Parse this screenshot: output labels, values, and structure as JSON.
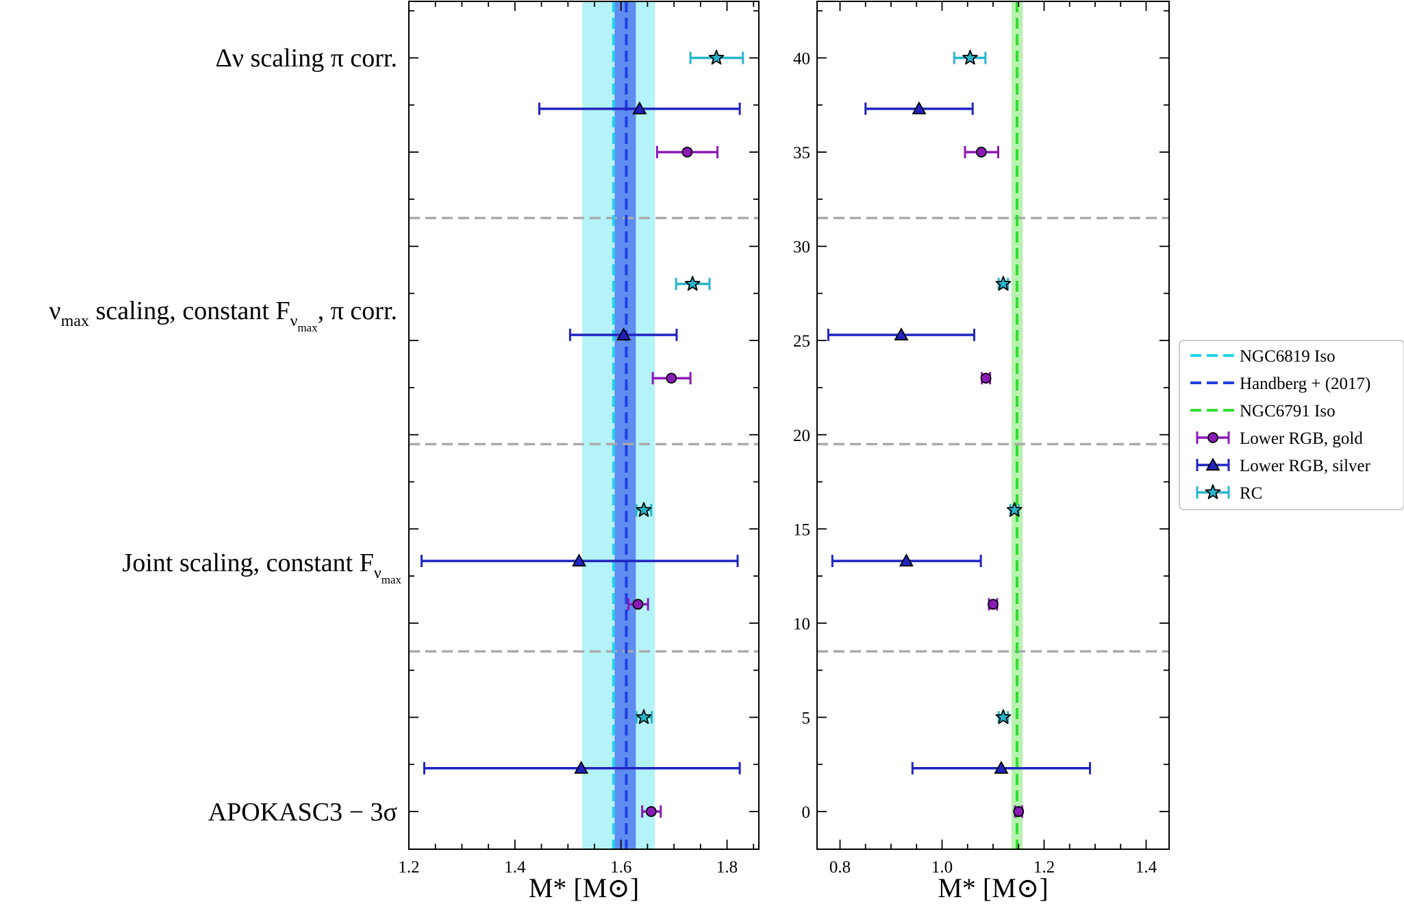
{
  "row_labels": [
    "Δν scaling π corr.",
    "νmax scaling, constant Fνmax, π corr.",
    "Joint scaling, constant Fνmax",
    "APOKASC3 − 3σ"
  ],
  "colors": {
    "ngc6819_iso": "#22d3ee",
    "ngc6819_band": "#b4f3f8",
    "handberg": "#1d3fe0",
    "handberg_band": "#5f8cf0",
    "ngc6791_iso": "#33dd33",
    "ngc6791_band": "#b8f2b0",
    "gold": "#8b1ab8",
    "silver": "#1f24c0",
    "rc": "#27b6cc",
    "separator": "#aaaaaa"
  },
  "chart_data": [
    {
      "type": "scatter",
      "panel": "left",
      "xlabel": "M* [M⊙]",
      "xlim": [
        1.2,
        1.86
      ],
      "ylim": [
        -2,
        43
      ],
      "xticks": [
        "1.2",
        "1.4",
        "1.6",
        "1.8"
      ],
      "xtick_values": [
        1.2,
        1.4,
        1.6,
        1.8
      ],
      "separators_y": [
        31.5,
        19.5,
        8.5
      ],
      "vertical_lines": [
        {
          "name": "NGC6819 Iso",
          "x": 1.586,
          "color_key": "ngc6819_iso",
          "band": [
            1.527,
            1.664
          ],
          "band_color_key": "ngc6819_band"
        },
        {
          "name": "Handberg + (2017)",
          "x": 1.61,
          "color_key": "handberg",
          "band": [
            1.588,
            1.628
          ],
          "band_color_key": "handberg_band"
        }
      ],
      "series": [
        {
          "name": "Lower RGB, gold",
          "marker": "circle",
          "color_key": "gold",
          "points": [
            {
              "y": 35,
              "x": 1.725,
              "lo": 1.668,
              "hi": 1.782
            },
            {
              "y": 23,
              "x": 1.695,
              "lo": 1.66,
              "hi": 1.731
            },
            {
              "y": 11,
              "x": 1.632,
              "lo": 1.614,
              "hi": 1.651
            },
            {
              "y": 0,
              "x": 1.657,
              "lo": 1.64,
              "hi": 1.675
            }
          ]
        },
        {
          "name": "Lower RGB, silver",
          "marker": "triangle",
          "color_key": "silver",
          "points": [
            {
              "y": 37.3,
              "x": 1.635,
              "lo": 1.446,
              "hi": 1.824
            },
            {
              "y": 25.3,
              "x": 1.605,
              "lo": 1.504,
              "hi": 1.705
            },
            {
              "y": 13.3,
              "x": 1.521,
              "lo": 1.224,
              "hi": 1.82
            },
            {
              "y": 2.3,
              "x": 1.525,
              "lo": 1.229,
              "hi": 1.824
            }
          ]
        },
        {
          "name": "RC",
          "marker": "star",
          "color_key": "rc",
          "points": [
            {
              "y": 40,
              "x": 1.78,
              "lo": 1.731,
              "hi": 1.83
            },
            {
              "y": 28,
              "x": 1.735,
              "lo": 1.704,
              "hi": 1.767
            },
            {
              "y": 16,
              "x": 1.643,
              "lo": 1.629,
              "hi": 1.657
            },
            {
              "y": 5,
              "x": 1.643,
              "lo": 1.629,
              "hi": 1.658
            }
          ]
        }
      ]
    },
    {
      "type": "scatter",
      "panel": "right",
      "xlabel": "M* [M⊙]",
      "xlim": [
        0.755,
        1.445
      ],
      "ylim": [
        -2,
        43
      ],
      "xticks": [
        "0.8",
        "1.0",
        "1.2",
        "1.4"
      ],
      "xtick_values": [
        0.8,
        1.0,
        1.2,
        1.4
      ],
      "yticks": [
        "0",
        "5",
        "10",
        "15",
        "20",
        "25",
        "30",
        "35",
        "40"
      ],
      "ytick_values": [
        0,
        5,
        10,
        15,
        20,
        25,
        30,
        35,
        40
      ],
      "separators_y": [
        31.5,
        19.5,
        8.5
      ],
      "vertical_lines": [
        {
          "name": "NGC6791 Iso",
          "x": 1.147,
          "color_key": "ngc6791_iso",
          "band": [
            1.136,
            1.158
          ],
          "band_color_key": "ngc6791_band"
        }
      ],
      "series": [
        {
          "name": "Lower RGB, gold",
          "marker": "circle",
          "color_key": "gold",
          "points": [
            {
              "y": 35,
              "x": 1.077,
              "lo": 1.045,
              "hi": 1.11
            },
            {
              "y": 23,
              "x": 1.086,
              "lo": 1.078,
              "hi": 1.094
            },
            {
              "y": 11,
              "x": 1.1,
              "lo": 1.092,
              "hi": 1.108
            },
            {
              "y": 0,
              "x": 1.15,
              "lo": 1.143,
              "hi": 1.157
            }
          ]
        },
        {
          "name": "Lower RGB, silver",
          "marker": "triangle",
          "color_key": "silver",
          "points": [
            {
              "y": 37.3,
              "x": 0.955,
              "lo": 0.85,
              "hi": 1.06
            },
            {
              "y": 25.3,
              "x": 0.92,
              "lo": 0.777,
              "hi": 1.063
            },
            {
              "y": 13.3,
              "x": 0.93,
              "lo": 0.785,
              "hi": 1.076
            },
            {
              "y": 2.3,
              "x": 1.116,
              "lo": 0.942,
              "hi": 1.29
            }
          ]
        },
        {
          "name": "RC",
          "marker": "star",
          "color_key": "rc",
          "points": [
            {
              "y": 40,
              "x": 1.055,
              "lo": 1.024,
              "hi": 1.085
            },
            {
              "y": 28,
              "x": 1.12,
              "lo": 1.111,
              "hi": 1.129
            },
            {
              "y": 16,
              "x": 1.142,
              "lo": 1.134,
              "hi": 1.15
            },
            {
              "y": 5,
              "x": 1.12,
              "lo": 1.111,
              "hi": 1.129
            }
          ]
        }
      ]
    }
  ],
  "legend": {
    "placement": "right of panels, vertically centered",
    "entries": [
      {
        "label": "NGC6819 Iso",
        "kind": "dashed",
        "color_key": "ngc6819_iso"
      },
      {
        "label": "Handberg + (2017)",
        "kind": "dashed",
        "color_key": "handberg"
      },
      {
        "label": "NGC6791 Iso",
        "kind": "dashed",
        "color_key": "ngc6791_iso"
      },
      {
        "label": "Lower RGB, gold",
        "kind": "circle",
        "color_key": "gold"
      },
      {
        "label": "Lower RGB, silver",
        "kind": "triangle",
        "color_key": "silver"
      },
      {
        "label": "RC",
        "kind": "star",
        "color_key": "rc"
      }
    ]
  }
}
